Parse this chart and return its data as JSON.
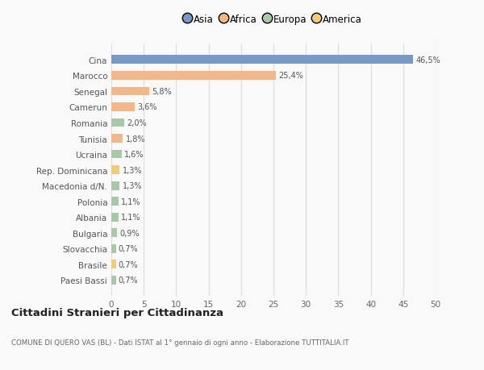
{
  "categories": [
    "Paesi Bassi",
    "Brasile",
    "Slovacchia",
    "Bulgaria",
    "Albania",
    "Polonia",
    "Macedonia d/N.",
    "Rep. Dominicana",
    "Ucraina",
    "Tunisia",
    "Romania",
    "Camerun",
    "Senegal",
    "Marocco",
    "Cina"
  ],
  "values": [
    0.7,
    0.7,
    0.7,
    0.9,
    1.1,
    1.1,
    1.3,
    1.3,
    1.6,
    1.8,
    2.0,
    3.6,
    5.8,
    25.4,
    46.5
  ],
  "labels": [
    "0,7%",
    "0,7%",
    "0,7%",
    "0,9%",
    "1,1%",
    "1,1%",
    "1,3%",
    "1,3%",
    "1,6%",
    "1,8%",
    "2,0%",
    "3,6%",
    "5,8%",
    "25,4%",
    "46,5%"
  ],
  "colors": [
    "#a8c8a8",
    "#f0cc78",
    "#a8c8a8",
    "#a8c8a8",
    "#a8c8a8",
    "#a8c8a8",
    "#a8c8a8",
    "#f0cc78",
    "#a8c8a8",
    "#f0b888",
    "#a8c8a8",
    "#f0b888",
    "#f0b888",
    "#f0b888",
    "#7898c8"
  ],
  "legend": [
    {
      "label": "Asia",
      "color": "#7898c8"
    },
    {
      "label": "Africa",
      "color": "#f0b888"
    },
    {
      "label": "Europa",
      "color": "#a8c8a8"
    },
    {
      "label": "America",
      "color": "#f0cc78"
    }
  ],
  "xlim": [
    0,
    50
  ],
  "xticks": [
    0,
    5,
    10,
    15,
    20,
    25,
    30,
    35,
    40,
    45,
    50
  ],
  "title": "Cittadini Stranieri per Cittadinanza",
  "subtitle": "COMUNE DI QUERO VAS (BL) - Dati ISTAT al 1° gennaio di ogni anno - Elaborazione TUTTITALIA.IT",
  "background_color": "#f9f9f9",
  "grid_color": "#dddddd",
  "bar_height": 0.55
}
